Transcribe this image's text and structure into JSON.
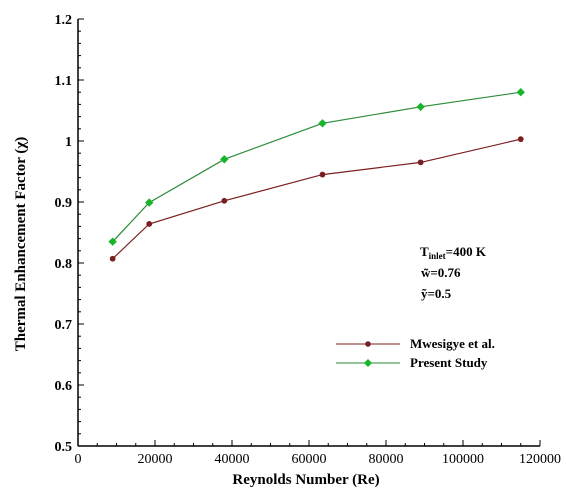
{
  "chart_data": {
    "type": "line",
    "xlabel": "Reynolds Number (Re)",
    "ylabel": "Thermal Enhancement Factor (χ)",
    "xlim": [
      0,
      120000
    ],
    "ylim": [
      0.5,
      1.2
    ],
    "xticks": [
      0,
      20000,
      40000,
      60000,
      80000,
      100000,
      120000
    ],
    "yticks": [
      0.5,
      0.6,
      0.7,
      0.8,
      0.9,
      1.0,
      1.1,
      1.2
    ],
    "xtick_labels": [
      "0",
      "20000",
      "40000",
      "60000",
      "80000",
      "100000",
      "120000"
    ],
    "ytick_labels": [
      "0.5",
      "0.6",
      "0.7",
      "0.8",
      "0.9",
      "1",
      "1.1",
      "1.2"
    ],
    "grid": false,
    "legend_position": "lower-right",
    "series": [
      {
        "name": "Mwesigye et al.",
        "color": "#7a1f1f",
        "marker": "circle",
        "x": [
          9000,
          18500,
          38000,
          63500,
          89000,
          115000
        ],
        "y": [
          0.807,
          0.864,
          0.902,
          0.945,
          0.965,
          1.003
        ]
      },
      {
        "name": "Present Study",
        "color": "#2e8b3a",
        "marker_color": "#17b52a",
        "marker": "diamond",
        "x": [
          9000,
          18500,
          38000,
          63500,
          89000,
          115000
        ],
        "y": [
          0.835,
          0.899,
          0.97,
          1.029,
          1.056,
          1.08
        ]
      }
    ],
    "annotation": {
      "t_main": "T",
      "t_sub": "inlet",
      "t_value": "=400 K",
      "w_text": "w̃=0.76",
      "y_text": "ỹ=0.5"
    }
  }
}
